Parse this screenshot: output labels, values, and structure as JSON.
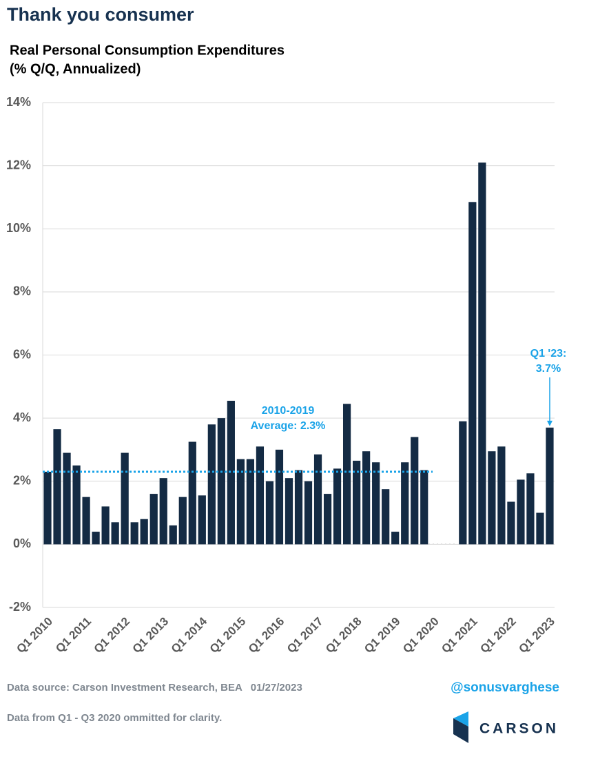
{
  "header": {
    "title": "Thank you consumer"
  },
  "chart_data": {
    "type": "bar",
    "title": "Real Personal Consumption Expenditures",
    "subtitle": "(% Q/Q, Annualized)",
    "categories": [
      "Q1 2010",
      null,
      null,
      null,
      "Q1 2011",
      null,
      null,
      null,
      "Q1 2012",
      null,
      null,
      null,
      "Q1 2013",
      null,
      null,
      null,
      "Q1 2014",
      null,
      null,
      null,
      "Q1 2015",
      null,
      null,
      null,
      "Q1 2016",
      null,
      null,
      null,
      "Q1 2017",
      null,
      null,
      null,
      "Q1 2018",
      null,
      null,
      null,
      "Q1 2019",
      null,
      null,
      null,
      "Q1 2020",
      null,
      null,
      null,
      "Q1 2021",
      null,
      null,
      null,
      "Q1 2022",
      null,
      null,
      null,
      "Q1 2023"
    ],
    "values": [
      2.3,
      3.65,
      2.9,
      2.5,
      1.5,
      0.4,
      1.2,
      0.7,
      2.9,
      0.7,
      0.8,
      1.6,
      2.1,
      0.6,
      1.5,
      3.25,
      1.55,
      3.8,
      4.0,
      4.55,
      2.7,
      2.7,
      3.1,
      2.0,
      3.0,
      2.1,
      2.35,
      2.0,
      2.85,
      1.6,
      2.4,
      4.45,
      2.65,
      2.95,
      2.6,
      1.75,
      0.4,
      2.6,
      3.4,
      2.35,
      null,
      null,
      null,
      3.9,
      10.85,
      12.1,
      2.95,
      3.1,
      1.35,
      2.05,
      2.25,
      1.0,
      3.7
    ],
    "color": "#142b44",
    "ylim": [
      -2,
      14
    ],
    "yticks": [
      {
        "value": -2,
        "label": "-2%"
      },
      {
        "value": 0,
        "label": "0%"
      },
      {
        "value": 2,
        "label": "2%"
      },
      {
        "value": 4,
        "label": "4%"
      },
      {
        "value": 6,
        "label": "6%"
      },
      {
        "value": 8,
        "label": "8%"
      },
      {
        "value": 10,
        "label": "10%"
      },
      {
        "value": 12,
        "label": "12%"
      },
      {
        "value": 14,
        "label": "14%"
      }
    ],
    "grid": true,
    "average": {
      "value": 2.3,
      "color": "#1aa3e8",
      "lines": [
        "2010-2019",
        "Average: 2.3%"
      ]
    },
    "callout": {
      "lines": [
        "Q1 '23:",
        "3.7%"
      ],
      "color": "#1aa3e8"
    }
  },
  "footer": {
    "source": "Data source: Carson Investment Research, BEA   01/27/2023",
    "handle": "@sonusvarghese",
    "note": "Data from Q1 - Q3 2020 ommitted for clarity.",
    "logo": "CARSON"
  }
}
